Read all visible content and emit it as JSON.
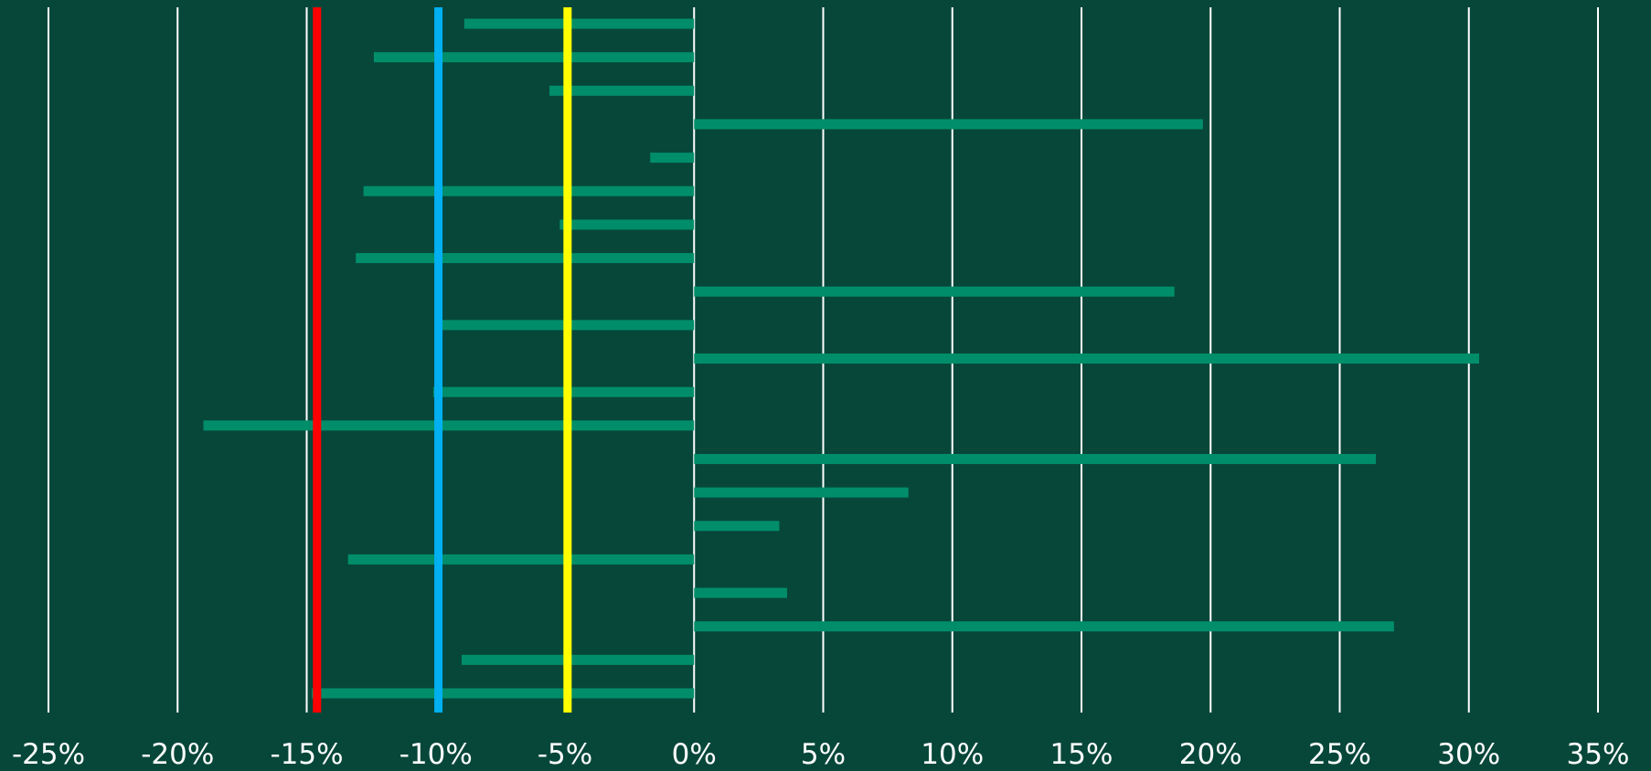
{
  "chart_data": {
    "type": "bar",
    "orientation": "horizontal",
    "title": "",
    "xlabel": "",
    "ylabel": "",
    "xlim": [
      -25,
      35
    ],
    "x_ticks": [
      -25,
      -20,
      -15,
      -10,
      -5,
      0,
      5,
      10,
      15,
      20,
      25,
      30,
      35
    ],
    "x_tick_labels": [
      "-25%",
      "-20%",
      "-15%",
      "-10%",
      "-5%",
      "0%",
      "5%",
      "10%",
      "15%",
      "20%",
      "25%",
      "30%",
      "35%"
    ],
    "grid": "vertical",
    "values": [
      -8.9,
      -12.4,
      -5.6,
      19.7,
      -1.7,
      -12.8,
      -5.2,
      -13.1,
      18.6,
      -9.8,
      30.4,
      -10.1,
      -19.0,
      26.4,
      8.3,
      3.3,
      -13.4,
      3.6,
      27.1,
      -9.0,
      -14.8
    ],
    "reference_lines": [
      {
        "value": -14.6,
        "color": "#ff0000"
      },
      {
        "value": -9.9,
        "color": "#00b0f0"
      },
      {
        "value": -4.9,
        "color": "#ffff00"
      }
    ],
    "colors": {
      "background": "#07473a",
      "bar": "#008e6a",
      "grid": "#ffffff",
      "text": "#ffffff"
    }
  }
}
